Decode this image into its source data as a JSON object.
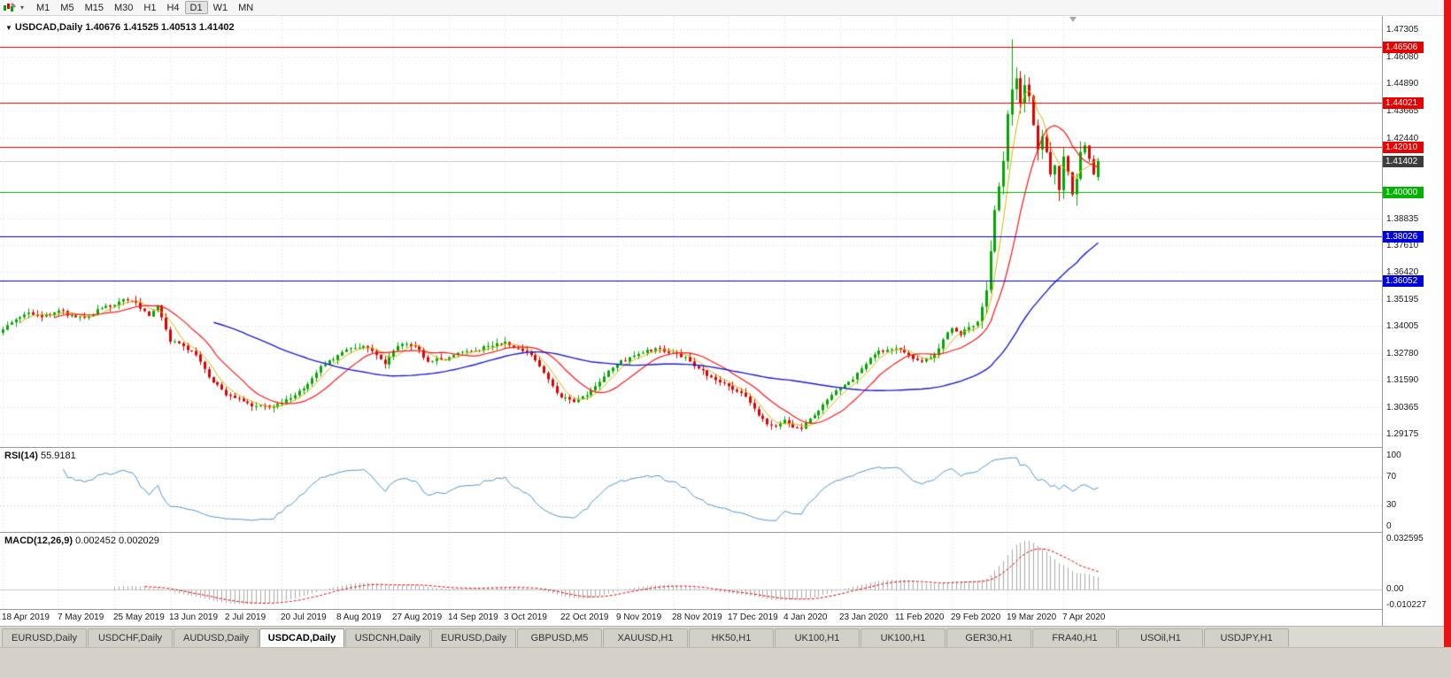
{
  "toolbar": {
    "timeframes": [
      {
        "label": "M1",
        "active": false
      },
      {
        "label": "M5",
        "active": false
      },
      {
        "label": "M15",
        "active": false
      },
      {
        "label": "M30",
        "active": false
      },
      {
        "label": "H1",
        "active": false
      },
      {
        "label": "H4",
        "active": false
      },
      {
        "label": "D1",
        "active": true
      },
      {
        "label": "W1",
        "active": false
      },
      {
        "label": "MN",
        "active": false
      }
    ]
  },
  "chart": {
    "title_symbol": "USDCAD,Daily",
    "ohlc_text": "1.40676 1.41525 1.40513 1.41402"
  },
  "indicators": {
    "rsi_label": "RSI(14)",
    "rsi_value": "55.9181",
    "rsi_scale": [
      "100",
      "70",
      "30",
      "0"
    ],
    "macd_label": "MACD(12,26,9)",
    "macd_values": "0.002452 0.002029",
    "macd_scale": [
      "0.032595",
      "0.00",
      "-0.010227"
    ]
  },
  "chart_data": {
    "type": "candlestick",
    "symbol": "USDCAD",
    "timeframe": "Daily",
    "ohlc_display": {
      "open": "1.40676",
      "high": "1.41525",
      "low": "1.40513",
      "close": "1.41402"
    },
    "current_price": {
      "value": 1.41402,
      "label": "1.41402",
      "badge_color": "#3d3d3d",
      "line_color": "#c8c8c8"
    },
    "y_axis": {
      "max": 1.47305,
      "min": 1.29175,
      "ticks": [
        1.47305,
        1.4608,
        1.4489,
        1.43665,
        1.4244,
        1.38835,
        1.3761,
        1.3642,
        1.35195,
        1.34005,
        1.3278,
        1.3159,
        1.30365,
        1.29175
      ],
      "tick_labels": [
        "1.47305",
        "1.46080",
        "1.44890",
        "1.43665",
        "1.42440",
        "1.38835",
        "1.37610",
        "1.36420",
        "1.35195",
        "1.34005",
        "1.32780",
        "1.31590",
        "1.30365",
        "1.29175"
      ]
    },
    "levels": [
      {
        "price": 1.46506,
        "label": "1.46506",
        "color": "#e60000"
      },
      {
        "price": 1.44021,
        "label": "1.44021",
        "color": "#e60000"
      },
      {
        "price": 1.4201,
        "label": "1.42010",
        "color": "#e60000"
      },
      {
        "price": 1.4,
        "label": "1.40000",
        "color": "#00b300"
      },
      {
        "price": 1.38026,
        "label": "1.38026",
        "color": "#0000dd"
      },
      {
        "price": 1.36052,
        "label": "1.36052",
        "color": "#0000dd"
      }
    ],
    "x_axis": {
      "labels": [
        "18 Apr 2019",
        "7 May 2019",
        "25 May 2019",
        "13 Jun 2019",
        "2 Jul 2019",
        "20 Jul 2019",
        "8 Aug 2019",
        "27 Aug 2019",
        "14 Sep 2019",
        "3 Oct 2019",
        "22 Oct 2019",
        "9 Nov 2019",
        "28 Nov 2019",
        "17 Dec 2019",
        "4 Jan 2020",
        "23 Jan 2020",
        "11 Feb 2020",
        "29 Feb 2020",
        "19 Mar 2020",
        "7 Apr 2020"
      ],
      "candles_per_label": 13
    },
    "num_candles": 256,
    "anchors": [
      [
        0,
        1.3385
      ],
      [
        3,
        1.343
      ],
      [
        6,
        1.346
      ],
      [
        9,
        1.344
      ],
      [
        13,
        1.347
      ],
      [
        17,
        1.344
      ],
      [
        20,
        1.3445
      ],
      [
        23,
        1.348
      ],
      [
        26,
        1.3495
      ],
      [
        28,
        1.352
      ],
      [
        31,
        1.3505
      ],
      [
        34,
        1.3445
      ],
      [
        36,
        1.349
      ],
      [
        39,
        1.333
      ],
      [
        42,
        1.331
      ],
      [
        45,
        1.327
      ],
      [
        48,
        1.317
      ],
      [
        52,
        1.309
      ],
      [
        55,
        1.3075
      ],
      [
        58,
        1.304
      ],
      [
        62,
        1.3035
      ],
      [
        65,
        1.3055
      ],
      [
        68,
        1.309
      ],
      [
        71,
        1.314
      ],
      [
        74,
        1.322
      ],
      [
        78,
        1.327
      ],
      [
        81,
        1.33
      ],
      [
        84,
        1.331
      ],
      [
        87,
        1.327
      ],
      [
        89,
        1.323
      ],
      [
        91,
        1.329
      ],
      [
        93,
        1.332
      ],
      [
        96,
        1.331
      ],
      [
        99,
        1.324
      ],
      [
        102,
        1.325
      ],
      [
        104,
        1.326
      ],
      [
        107,
        1.3285
      ],
      [
        110,
        1.329
      ],
      [
        113,
        1.331
      ],
      [
        117,
        1.333
      ],
      [
        120,
        1.33
      ],
      [
        123,
        1.327
      ],
      [
        126,
        1.319
      ],
      [
        130,
        1.308
      ],
      [
        133,
        1.306
      ],
      [
        136,
        1.309
      ],
      [
        139,
        1.315
      ],
      [
        141,
        1.32
      ],
      [
        143,
        1.323
      ],
      [
        146,
        1.326
      ],
      [
        149,
        1.328
      ],
      [
        152,
        1.33
      ],
      [
        156,
        1.328
      ],
      [
        159,
        1.326
      ],
      [
        162,
        1.321
      ],
      [
        165,
        1.317
      ],
      [
        169,
        1.313
      ],
      [
        172,
        1.31
      ],
      [
        175,
        1.303
      ],
      [
        178,
        1.296
      ],
      [
        180,
        1.295
      ],
      [
        182,
        1.298
      ],
      [
        184,
        1.2945
      ],
      [
        186,
        1.294
      ],
      [
        189,
        1.3
      ],
      [
        192,
        1.307
      ],
      [
        195,
        1.312
      ],
      [
        198,
        1.316
      ],
      [
        201,
        1.323
      ],
      [
        204,
        1.329
      ],
      [
        208,
        1.33
      ],
      [
        211,
        1.327
      ],
      [
        214,
        1.324
      ],
      [
        217,
        1.327
      ],
      [
        219,
        1.334
      ],
      [
        221,
        1.339
      ],
      [
        223,
        1.336
      ],
      [
        225,
        1.3395
      ],
      [
        227,
        1.342
      ],
      [
        229,
        1.356
      ],
      [
        231,
        1.392
      ],
      [
        233,
        1.414
      ],
      [
        234,
        1.435
      ],
      [
        235,
        1.446
      ],
      [
        236,
        1.451
      ],
      [
        237,
        1.44
      ],
      [
        238,
        1.448
      ],
      [
        239,
        1.443
      ],
      [
        240,
        1.43
      ],
      [
        241,
        1.419
      ],
      [
        242,
        1.425
      ],
      [
        243,
        1.418
      ],
      [
        244,
        1.408
      ],
      [
        245,
        1.412
      ],
      [
        246,
        1.401
      ],
      [
        247,
        1.416
      ],
      [
        248,
        1.409
      ],
      [
        249,
        1.399
      ],
      [
        250,
        1.406
      ],
      [
        251,
        1.418
      ],
      [
        252,
        1.421
      ],
      [
        253,
        1.415
      ],
      [
        254,
        1.408
      ],
      [
        255,
        1.414
      ]
    ],
    "spike_high": 1.4685,
    "colors": {
      "up": "#00a800",
      "down": "#e00000",
      "ma_fast": "#d8b400",
      "ma_mid": "#ff1414",
      "ma_slow": "#1c1cd2",
      "rsi_line": "#4f94cd",
      "macd_hist": "#a8a8a8",
      "macd_signal": "#e00000",
      "grid": "#dedede"
    },
    "indicators": {
      "rsi": {
        "period": 14,
        "levels": [
          100,
          70,
          30,
          0
        ]
      },
      "macd": {
        "fast": 12,
        "slow": 26,
        "signal": 9,
        "range_min": -0.010227,
        "range_max": 0.032595
      },
      "moving_averages": [
        {
          "period": 5
        },
        {
          "period": 13
        },
        {
          "period": 50
        }
      ]
    }
  },
  "tabs": [
    {
      "label": "EURUSD,Daily",
      "active": false
    },
    {
      "label": "USDCHF,Daily",
      "active": false
    },
    {
      "label": "AUDUSD,Daily",
      "active": false
    },
    {
      "label": "USDCAD,Daily",
      "active": true
    },
    {
      "label": "USDCNH,Daily",
      "active": false
    },
    {
      "label": "EURUSD,Daily",
      "active": false
    },
    {
      "label": "GBPUSD,M5",
      "active": false
    },
    {
      "label": "XAUUSD,H1",
      "active": false
    },
    {
      "label": "HK50,H1",
      "active": false
    },
    {
      "label": "UK100,H1",
      "active": false
    },
    {
      "label": "UK100,H1",
      "active": false
    },
    {
      "label": "GER30,H1",
      "active": false
    },
    {
      "label": "FRA40,H1",
      "active": false
    },
    {
      "label": "USOil,H1",
      "active": false
    },
    {
      "label": "USDJPY,H1",
      "active": false
    }
  ]
}
